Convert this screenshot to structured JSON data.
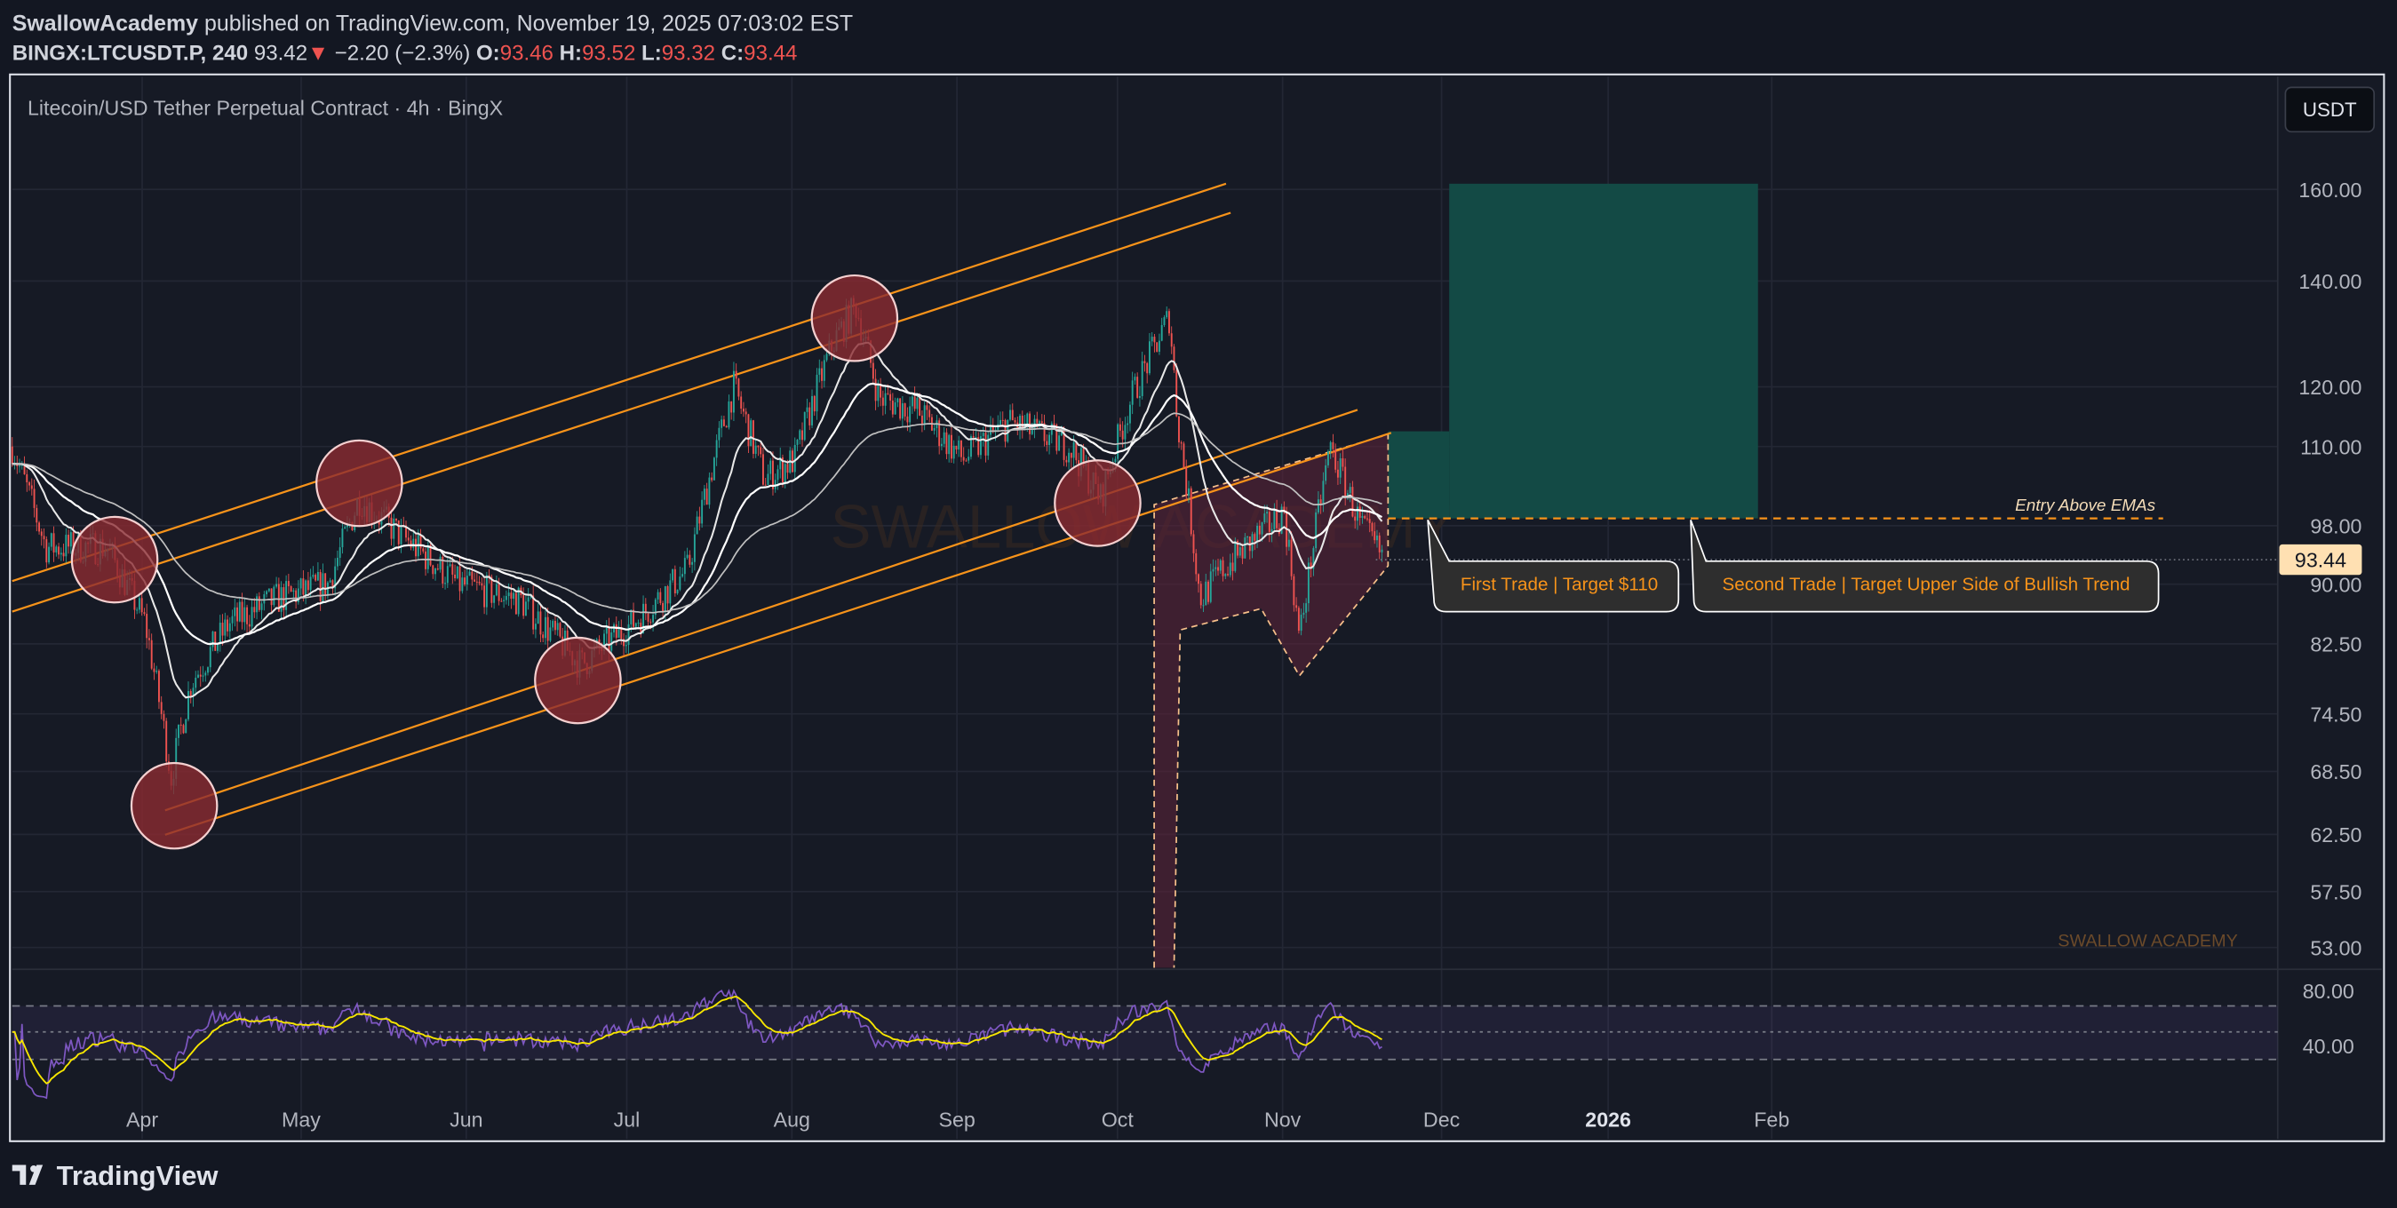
{
  "header": {
    "author": "SwallowAcademy",
    "published": "published on TradingView.com, November 19, 2025 07:03:02 EST",
    "symbol": "BINGX:LTCUSDT.P, 240",
    "last": "93.42",
    "change": "−2.20 (−2.3%)",
    "o_label": "O:",
    "o": "93.46",
    "h_label": "H:",
    "h": "93.52",
    "l_label": "L:",
    "l": "93.32",
    "c_label": "C:",
    "c": "93.44"
  },
  "chart": {
    "title": "Litecoin/USD Tether Perpetual Contract · 4h · BingX",
    "currency_button": "USDT",
    "watermark": "SWALLOW ACADEMY",
    "corner_watermark": "SWALLOW ACADEMY",
    "current_price": "93.44",
    "price_ticks": [
      "160.00",
      "140.00",
      "120.00",
      "110.00",
      "98.00",
      "90.00",
      "82.50",
      "74.50",
      "68.50",
      "62.50",
      "57.50",
      "53.00"
    ],
    "rsi_ticks": [
      "80.00",
      "40.00"
    ],
    "time_ticks": [
      "Apr",
      "May",
      "Jun",
      "Jul",
      "Aug",
      "Sep",
      "Oct",
      "Nov",
      "Dec",
      "2026",
      "Feb"
    ],
    "annotations": {
      "entry": "Entry Above EMAs",
      "first_trade": "First Trade | Target $110",
      "second_trade": "Second Trade | Target Upper Side of Bullish Trend"
    },
    "colors": {
      "up": "#26a69a",
      "down": "#ef5350",
      "channel": "#f7931a",
      "target_zone": "#134a45",
      "circle": "#8b2a31",
      "rsi": "#7e57c2"
    }
  },
  "footer": {
    "logo": "TradingView"
  }
}
